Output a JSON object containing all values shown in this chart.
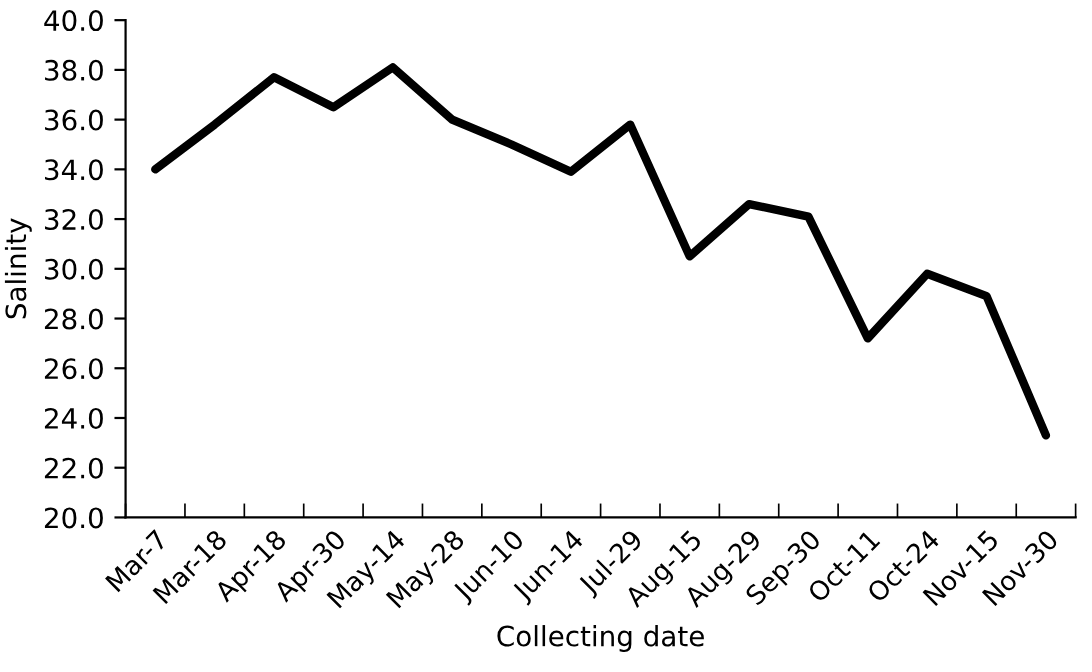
{
  "chart_data": {
    "type": "line",
    "xlabel": "Collecting date",
    "ylabel": "Salinity",
    "categories": [
      "Mar-7",
      "Mar-18",
      "Apr-18",
      "Apr-30",
      "May-14",
      "May-28",
      "Jun-10",
      "Jun-14",
      "Jul-29",
      "Aug-15",
      "Aug-29",
      "Sep-30",
      "Oct-11",
      "Oct-24",
      "Nov-15",
      "Nov-30"
    ],
    "series": [
      {
        "color": "#000000",
        "values": [
          34.0,
          35.8,
          37.7,
          36.5,
          38.1,
          36.0,
          35.0,
          33.9,
          35.8,
          30.5,
          32.6,
          32.1,
          27.2,
          29.8,
          28.9,
          23.3
        ]
      }
    ],
    "ylim": [
      20,
      40
    ],
    "yticks": [
      {
        "value": 20,
        "label": "20.0"
      },
      {
        "value": 22,
        "label": "22.0"
      },
      {
        "value": 24,
        "label": "24.0"
      },
      {
        "value": 26,
        "label": "26.0"
      },
      {
        "value": 28,
        "label": "28.0"
      },
      {
        "value": 30,
        "label": "30.0"
      },
      {
        "value": 32,
        "label": "32.0"
      },
      {
        "value": 34,
        "label": "34.0"
      },
      {
        "value": 36,
        "label": "36.0"
      },
      {
        "value": 38,
        "label": "38.0"
      },
      {
        "value": 40,
        "label": "40.0"
      }
    ],
    "grid": false,
    "legend": false,
    "marker": "none",
    "line_style": "solid"
  }
}
